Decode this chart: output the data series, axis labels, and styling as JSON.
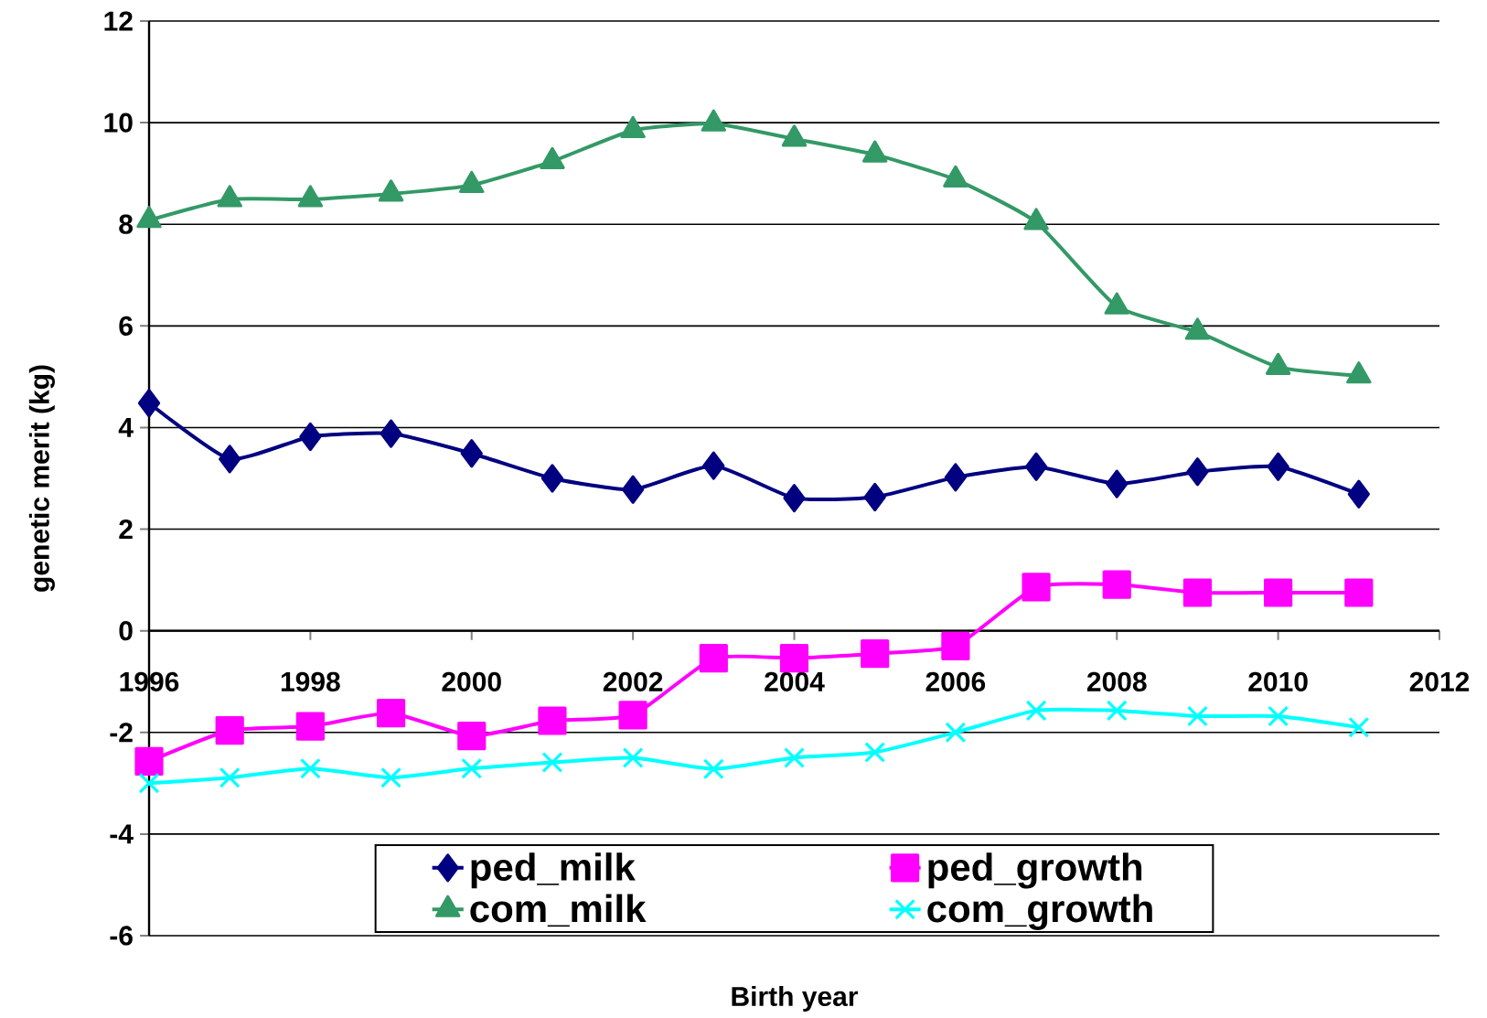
{
  "chart_data": {
    "type": "line",
    "xlabel": "Birth year",
    "ylabel": "genetic merit (kg)",
    "x": [
      1996,
      1997,
      1998,
      1999,
      2000,
      2001,
      2002,
      2003,
      2004,
      2005,
      2006,
      2007,
      2008,
      2009,
      2010,
      2011
    ],
    "xlim": [
      1996,
      2012
    ],
    "xticks": [
      1996,
      1998,
      2000,
      2002,
      2004,
      2006,
      2008,
      2010,
      2012
    ],
    "ylim": [
      -6,
      12
    ],
    "yticks": [
      -6,
      -4,
      -2,
      0,
      2,
      4,
      6,
      8,
      10,
      12
    ],
    "grid": "y",
    "legend": "bottom",
    "line_style": "solid",
    "series": [
      {
        "name": "ped_milk",
        "color": "#000080",
        "marker": "diamond",
        "values": [
          4.48,
          3.38,
          3.82,
          3.88,
          3.49,
          3.0,
          2.78,
          3.25,
          2.61,
          2.63,
          3.02,
          3.23,
          2.89,
          3.13,
          3.23,
          2.69
        ]
      },
      {
        "name": "ped_growth",
        "color": "#ff00ff",
        "marker": "square",
        "values": [
          -2.57,
          -1.96,
          -1.88,
          -1.62,
          -2.07,
          -1.77,
          -1.66,
          -0.54,
          -0.54,
          -0.45,
          -0.3,
          0.86,
          0.91,
          0.75,
          0.75,
          0.75
        ]
      },
      {
        "name": "com_milk",
        "color": "#339966",
        "marker": "triangle",
        "values": [
          8.08,
          8.49,
          8.49,
          8.6,
          8.77,
          9.24,
          9.85,
          9.98,
          9.68,
          9.37,
          8.88,
          8.04,
          6.38,
          5.88,
          5.19,
          5.02
        ]
      },
      {
        "name": "com_growth",
        "color": "#00ffff",
        "marker": "cross",
        "values": [
          -3.0,
          -2.89,
          -2.71,
          -2.89,
          -2.71,
          -2.59,
          -2.5,
          -2.72,
          -2.5,
          -2.39,
          -2.0,
          -1.57,
          -1.57,
          -1.68,
          -1.68,
          -1.9
        ]
      }
    ]
  }
}
